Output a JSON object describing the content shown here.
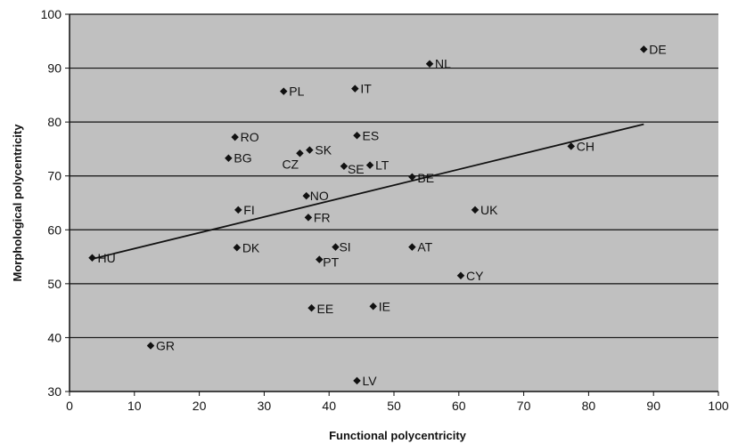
{
  "chart_data": {
    "type": "scatter",
    "title": "",
    "xlabel": "Functional polycentricity",
    "ylabel": "Morphological polycentricity",
    "xlim": [
      0,
      100
    ],
    "ylim": [
      30,
      100
    ],
    "xticks": [
      0,
      10,
      20,
      30,
      40,
      50,
      60,
      70,
      80,
      90,
      100
    ],
    "yticks": [
      30,
      40,
      50,
      60,
      70,
      80,
      90,
      100
    ],
    "grid": "horizontal",
    "legend": "none",
    "colors": {
      "plot_bg": "#c0c0c0",
      "marker": "#111111",
      "gridline": "#111111"
    },
    "points": [
      {
        "label": "DE",
        "x": 88.5,
        "y": 93.5
      },
      {
        "label": "NL",
        "x": 55.5,
        "y": 90.8
      },
      {
        "label": "PL",
        "x": 33,
        "y": 85.7
      },
      {
        "label": "IT",
        "x": 44,
        "y": 86.2
      },
      {
        "label": "RO",
        "x": 25.5,
        "y": 77.2
      },
      {
        "label": "ES",
        "x": 44.3,
        "y": 77.5
      },
      {
        "label": "CH",
        "x": 77.3,
        "y": 75.5
      },
      {
        "label": "SK",
        "x": 37,
        "y": 74.8
      },
      {
        "label": "CZ",
        "x": 35.5,
        "y": 74.2
      },
      {
        "label": "BG",
        "x": 24.5,
        "y": 73.3
      },
      {
        "label": "SE",
        "x": 42.3,
        "y": 71.8
      },
      {
        "label": "LT",
        "x": 46.3,
        "y": 72
      },
      {
        "label": "BE",
        "x": 52.8,
        "y": 69.8
      },
      {
        "label": "NO",
        "x": 36.5,
        "y": 66.3
      },
      {
        "label": "FI",
        "x": 26,
        "y": 63.7
      },
      {
        "label": "FR",
        "x": 36.8,
        "y": 62.3
      },
      {
        "label": "UK",
        "x": 62.5,
        "y": 63.7
      },
      {
        "label": "DK",
        "x": 25.8,
        "y": 56.7
      },
      {
        "label": "SI",
        "x": 41,
        "y": 56.8
      },
      {
        "label": "AT",
        "x": 52.8,
        "y": 56.8
      },
      {
        "label": "PT",
        "x": 38.5,
        "y": 54.5
      },
      {
        "label": "HU",
        "x": 3.5,
        "y": 54.8
      },
      {
        "label": "CY",
        "x": 60.3,
        "y": 51.5
      },
      {
        "label": "EE",
        "x": 37.3,
        "y": 45.5
      },
      {
        "label": "IE",
        "x": 46.8,
        "y": 45.8
      },
      {
        "label": "GR",
        "x": 12.5,
        "y": 38.5
      },
      {
        "label": "LV",
        "x": 44.3,
        "y": 32
      }
    ],
    "trendline": {
      "x": [
        3.5,
        88.5
      ],
      "y": [
        54.6,
        79.6
      ]
    }
  }
}
